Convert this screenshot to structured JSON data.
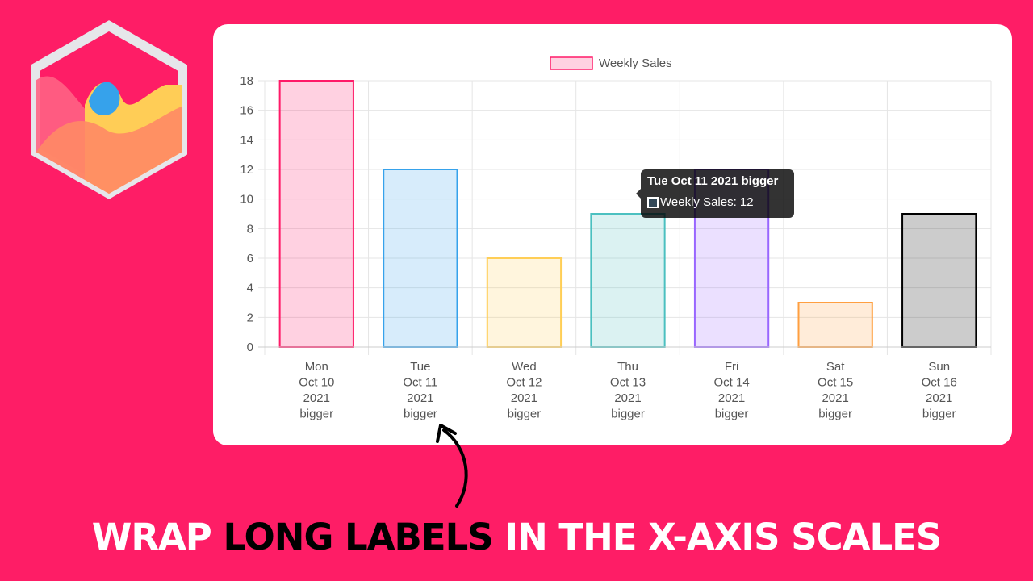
{
  "colors": {
    "background": "#fe1d66",
    "card": "#ffffff",
    "caption_highlight": "#000000",
    "caption_main": "#ffffff"
  },
  "logo": {
    "name": "chartjs-logo-icon"
  },
  "chart_data": {
    "type": "bar",
    "title": "",
    "xlabel": "",
    "ylabel": "",
    "ylim": [
      0,
      18
    ],
    "y_ticks": [
      0,
      2,
      4,
      6,
      8,
      10,
      12,
      14,
      16,
      18
    ],
    "grid": true,
    "legend_position": "top",
    "categories": [
      [
        "Mon",
        "Oct 10",
        "2021",
        "bigger"
      ],
      [
        "Tue",
        "Oct 11",
        "2021",
        "bigger"
      ],
      [
        "Wed",
        "Oct 12",
        "2021",
        "bigger"
      ],
      [
        "Thu",
        "Oct 13",
        "2021",
        "bigger"
      ],
      [
        "Fri",
        "Oct 14",
        "2021",
        "bigger"
      ],
      [
        "Sat",
        "Oct 15",
        "2021",
        "bigger"
      ],
      [
        "Sun",
        "Oct 16",
        "2021",
        "bigger"
      ]
    ],
    "series": [
      {
        "name": "Weekly Sales",
        "values": [
          18,
          12,
          6,
          9,
          12,
          3,
          9
        ],
        "fill_colors": [
          "rgba(255,26,104,0.2)",
          "rgba(54,162,235,0.2)",
          "rgba(255,206,86,0.2)",
          "rgba(75,192,192,0.2)",
          "rgba(153,102,255,0.2)",
          "rgba(255,159,64,0.2)",
          "rgba(0,0,0,0.2)"
        ],
        "border_colors": [
          "#ff1a68",
          "#36a2eb",
          "#ffce56",
          "#4bc0c0",
          "#9966ff",
          "#ff9f40",
          "#000000"
        ]
      }
    ],
    "legend": {
      "label": "Weekly Sales",
      "fill": "rgba(255,26,104,0.2)",
      "border": "#ff1a68"
    },
    "tooltip": {
      "title": "Tue Oct 11 2021 bigger",
      "body": "Weekly Sales: 12",
      "swatch_fill": "rgba(54,162,235,0.2)",
      "category_index": 1
    }
  },
  "caption": {
    "part1": "WRAP ",
    "part2": "LONG LABELS",
    "part3": " IN THE X-AXIS SCALES"
  }
}
